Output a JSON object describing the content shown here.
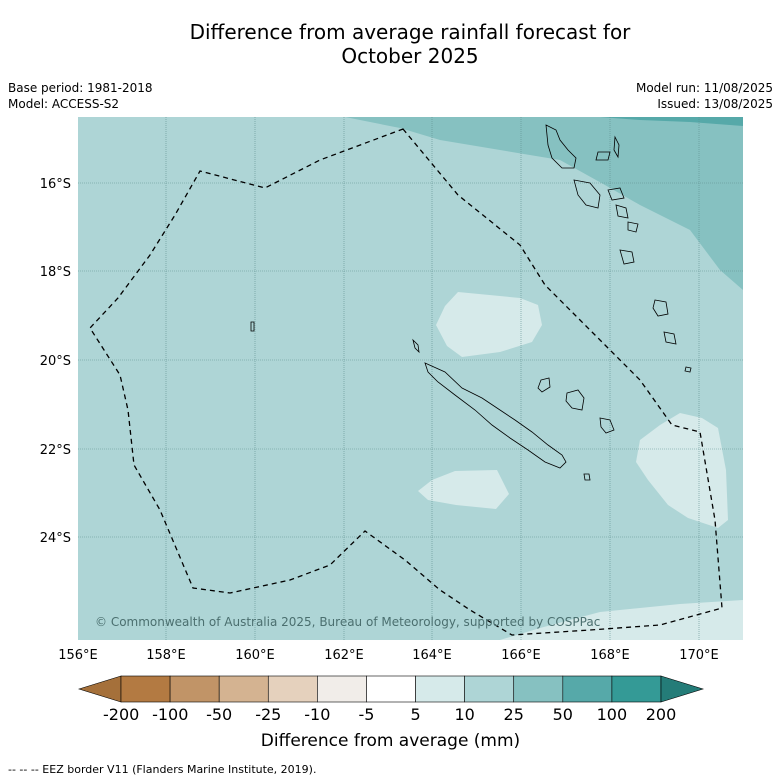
{
  "title_line1": "Difference from average rainfall forecast for",
  "title_line2": "October 2025",
  "meta": {
    "base_period": "Base period: 1981-2018",
    "model": "Model: ACCESS-S2",
    "model_run": "Model run: 11/08/2025",
    "issued": "Issued: 13/08/2025"
  },
  "map": {
    "lat_ticks": [
      "16°S",
      "18°S",
      "20°S",
      "22°S",
      "24°S"
    ],
    "lon_ticks": [
      "156°E",
      "158°E",
      "160°E",
      "162°E",
      "164°E",
      "166°E",
      "168°E",
      "170°E"
    ],
    "copyright": "© Commonwealth of Australia 2025, Bureau of Meteorology, supported by COSPPac",
    "colors": {
      "base": "#aed5d6",
      "light": "#d6eaea",
      "mid": "#86c1c1",
      "dark": "#56a9a9",
      "darkest": "#3a9b98"
    }
  },
  "colorbar": {
    "labels": [
      "-200",
      "-100",
      "-50",
      "-25",
      "-10",
      "-5",
      "5",
      "10",
      "25",
      "50",
      "100",
      "200"
    ],
    "colors": [
      "#a5703a",
      "#b37a42",
      "#c19467",
      "#d4b391",
      "#e5d1bd",
      "#f1ede9",
      "#ffffff",
      "#d6eaea",
      "#aed5d6",
      "#86c1c1",
      "#56a9a9",
      "#349a96",
      "#247c78"
    ],
    "title": "Difference from average (mm)"
  },
  "footer": "--  --  -- EEZ border V11 (Flanders Marine Institute, 2019)."
}
